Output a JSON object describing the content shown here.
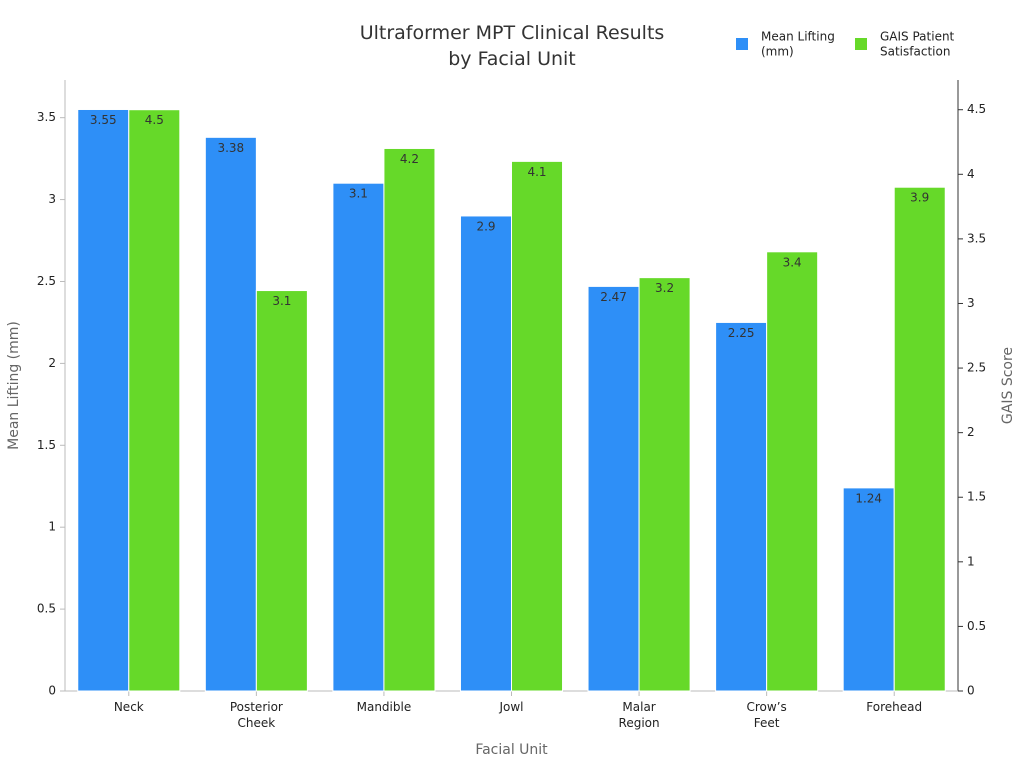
{
  "chart_data": {
    "type": "bar",
    "title": "Ultraformer MPT Clinical Results by Facial Unit",
    "x_label": "Facial Unit",
    "y_label": "Mean Lifting (mm)",
    "y2_label": "GAIS Score",
    "categories": [
      "Neck",
      "Posterior Cheek",
      "Mandible",
      "Jowl",
      "Malar Region",
      "Crow’s Feet",
      "Forehead"
    ],
    "series": [
      {
        "name": "Mean Lifting (mm)",
        "color": "#2e8ff7",
        "values": [
          3.55,
          3.38,
          3.1,
          2.9,
          2.47,
          2.25,
          1.24
        ]
      },
      {
        "name": "GAIS Patient Satisfaction",
        "color": "#66d929",
        "axis": "y2",
        "values": [
          4.5,
          3.1,
          4.2,
          4.1,
          3.2,
          3.4,
          3.9
        ]
      }
    ],
    "ylim": [
      0,
      3.73
    ],
    "yticks": [
      0,
      0.5,
      1,
      1.5,
      2,
      2.5,
      3,
      3.5
    ],
    "y2lim": [
      0,
      4.73
    ],
    "y2ticks": [
      0,
      0.5,
      1,
      1.5,
      2,
      2.5,
      3,
      3.5,
      4,
      4.5
    ],
    "legend": "top-right",
    "grid": false
  }
}
